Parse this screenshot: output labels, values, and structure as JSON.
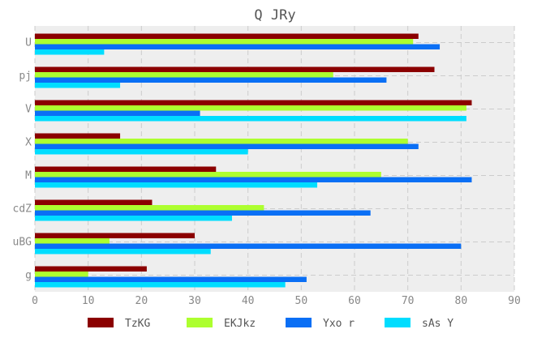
{
  "chart_data": {
    "type": "bar",
    "orientation": "horizontal",
    "title": "Q JRy",
    "xlabel": "",
    "ylabel": "",
    "categories": [
      "U",
      "pj",
      "V",
      "X",
      "M",
      "cdZ",
      "uBG",
      "g"
    ],
    "series": [
      {
        "name": "TzKG",
        "color": "#8b0000",
        "values": [
          72,
          75,
          82,
          16,
          34,
          22,
          30,
          21
        ]
      },
      {
        "name": "EKJkz",
        "color": "#adff2f",
        "values": [
          71,
          56,
          81,
          70,
          65,
          43,
          14,
          10
        ]
      },
      {
        "name": "Yxo r",
        "color": "#0a6ff5",
        "values": [
          76,
          66,
          31,
          72,
          82,
          63,
          80,
          51
        ]
      },
      {
        "name": "sAs Y",
        "color": "#00ddff",
        "values": [
          13,
          16,
          81,
          40,
          53,
          37,
          33,
          47
        ]
      }
    ],
    "xlim": [
      0,
      90
    ],
    "xticks": [
      0,
      10,
      20,
      30,
      40,
      50,
      60,
      70,
      80,
      90
    ],
    "grid": true,
    "legend_position": "bottom"
  }
}
